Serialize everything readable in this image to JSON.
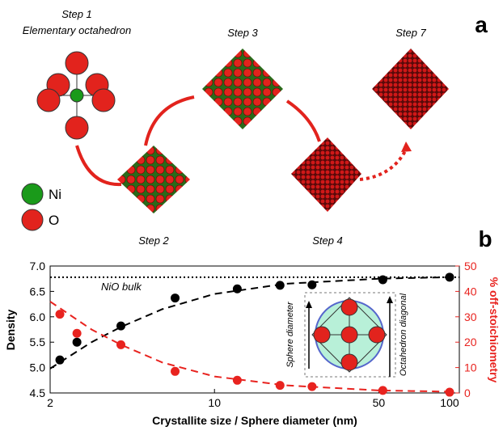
{
  "diagram": {
    "panel_label": "a",
    "step1": "Step 1",
    "step1_caption": "Elementary octahedron",
    "step2": "Step 2",
    "step3": "Step 3",
    "step4": "Step 4",
    "step7": "Step 7",
    "legend_ni": "Ni",
    "legend_o": "O"
  },
  "chart_data": {
    "type": "scatter",
    "panel_label": "b",
    "x_label": "Crystallite size / Sphere diameter (nm)",
    "y_label": "Density",
    "y2_label": "% off-stoichiometry",
    "log_x": true,
    "xlim": [
      2,
      110
    ],
    "xticks": [
      2,
      10,
      50,
      100
    ],
    "ylim": [
      4.5,
      7.0
    ],
    "yticks": [
      4.5,
      {
        "value": 5,
        "label": "5.0"
      },
      5.5,
      {
        "value": 6,
        "label": "6.0"
      },
      6.5,
      {
        "value": 7,
        "label": "7.0"
      }
    ],
    "y2lim": [
      0,
      50
    ],
    "y2ticks": [
      0,
      10,
      20,
      30,
      40,
      50
    ],
    "reference_line": {
      "label": "NiO bulk",
      "value": 6.78
    },
    "inset": {
      "left": "Sphere diameter",
      "right": "Octahedron diagonal"
    },
    "series": [
      {
        "color": "#000000",
        "x": [
          2.2,
          2.6,
          4.0,
          6.8,
          12.5,
          19,
          26,
          52,
          100
        ],
        "values": [
          5.15,
          5.5,
          5.82,
          6.37,
          6.55,
          6.62,
          6.63,
          6.73,
          6.78
        ]
      },
      {
        "color": "#e8231f",
        "axis": "y2",
        "x": [
          2.2,
          2.6,
          4.0,
          6.8,
          12.5,
          19,
          26,
          52,
          100
        ],
        "values": [
          31,
          23.5,
          19,
          8.5,
          5,
          3,
          2.5,
          1,
          0.3
        ]
      },
      {
        "color": "#000000",
        "line": "dashed",
        "x": [
          2,
          3,
          4,
          6,
          10,
          20,
          50,
          100
        ],
        "values": [
          4.98,
          5.5,
          5.8,
          6.15,
          6.45,
          6.65,
          6.75,
          6.78
        ]
      },
      {
        "color": "#e8231f",
        "line": "dashed",
        "axis": "y2",
        "x": [
          2,
          3,
          4,
          6,
          10,
          20,
          50,
          100
        ],
        "values": [
          36,
          25,
          19,
          12,
          6.5,
          3,
          1,
          0.5
        ]
      }
    ]
  }
}
